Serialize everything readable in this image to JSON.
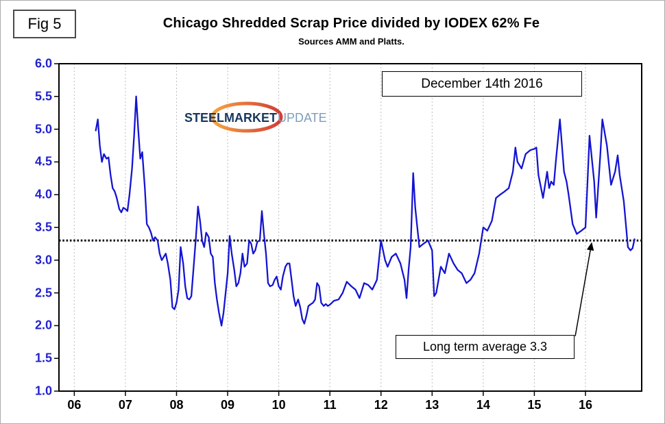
{
  "fig_label": "Fig 5",
  "annotations": {
    "date": "December 14th 2016",
    "average_label": "Long term average 3.3"
  },
  "logo": {
    "steel": "STEEL",
    "market": "MARKET",
    "update": "UPDATE"
  },
  "colors": {
    "line": "#1414d2",
    "grid": "#bcbcbc",
    "y_label": "#2222cc",
    "x_label": "#000000",
    "avg_line": "#000000",
    "border": "#000000",
    "logo_steel": "#17375e",
    "logo_market": "#17375e",
    "logo_update": "#7f9db9",
    "swoosh_start": "#f59d31",
    "swoosh_end": "#cf2b24"
  },
  "chart_data": {
    "type": "line",
    "title": "Chicago Shredded Scrap Price divided by IODEX 62% Fe",
    "subtitle": "Sources AMM and Platts.",
    "xlim": [
      2005.7,
      2017.1
    ],
    "ylim": [
      1.0,
      6.0
    ],
    "grid": "vertical-only",
    "legend": "none",
    "y_ticks": [
      6.0,
      5.5,
      5.0,
      4.5,
      4.0,
      3.5,
      3.0,
      2.5,
      2.0,
      1.5,
      1.0
    ],
    "x_ticks": [
      {
        "year": 2006,
        "label": "06"
      },
      {
        "year": 2007,
        "label": "07"
      },
      {
        "year": 2008,
        "label": "08"
      },
      {
        "year": 2009,
        "label": "09"
      },
      {
        "year": 2010,
        "label": "10"
      },
      {
        "year": 2011,
        "label": "11"
      },
      {
        "year": 2012,
        "label": "12"
      },
      {
        "year": 2013,
        "label": "13"
      },
      {
        "year": 2014,
        "label": "14"
      },
      {
        "year": 2015,
        "label": "15"
      },
      {
        "year": 2016,
        "label": "16"
      }
    ],
    "average_line": {
      "value": 3.3,
      "style": "dotted",
      "color": "#000000"
    },
    "annotation_arrow": {
      "from": [
        2015.8,
        1.84
      ],
      "to": [
        2016.12,
        3.26
      ]
    },
    "series": [
      {
        "name": "Chicago Shredded Scrap Price / IODEX 62% Fe",
        "color": "#1414d2",
        "points": [
          [
            2006.42,
            4.98
          ],
          [
            2006.46,
            5.15
          ],
          [
            2006.5,
            4.75
          ],
          [
            2006.54,
            4.5
          ],
          [
            2006.58,
            4.62
          ],
          [
            2006.63,
            4.55
          ],
          [
            2006.67,
            4.57
          ],
          [
            2006.71,
            4.3
          ],
          [
            2006.75,
            4.1
          ],
          [
            2006.79,
            4.05
          ],
          [
            2006.83,
            3.95
          ],
          [
            2006.88,
            3.78
          ],
          [
            2006.92,
            3.73
          ],
          [
            2006.96,
            3.8
          ],
          [
            2007.0,
            3.78
          ],
          [
            2007.04,
            3.75
          ],
          [
            2007.08,
            4.0
          ],
          [
            2007.13,
            4.4
          ],
          [
            2007.17,
            4.9
          ],
          [
            2007.21,
            5.5
          ],
          [
            2007.25,
            5.0
          ],
          [
            2007.29,
            4.55
          ],
          [
            2007.33,
            4.65
          ],
          [
            2007.38,
            4.1
          ],
          [
            2007.42,
            3.55
          ],
          [
            2007.46,
            3.5
          ],
          [
            2007.5,
            3.42
          ],
          [
            2007.54,
            3.3
          ],
          [
            2007.58,
            3.35
          ],
          [
            2007.63,
            3.3
          ],
          [
            2007.67,
            3.1
          ],
          [
            2007.71,
            3.0
          ],
          [
            2007.75,
            3.05
          ],
          [
            2007.79,
            3.1
          ],
          [
            2007.83,
            2.95
          ],
          [
            2007.88,
            2.7
          ],
          [
            2007.92,
            2.28
          ],
          [
            2007.96,
            2.25
          ],
          [
            2008.0,
            2.35
          ],
          [
            2008.04,
            2.55
          ],
          [
            2008.08,
            3.2
          ],
          [
            2008.13,
            2.95
          ],
          [
            2008.17,
            2.6
          ],
          [
            2008.21,
            2.42
          ],
          [
            2008.25,
            2.4
          ],
          [
            2008.29,
            2.45
          ],
          [
            2008.33,
            2.85
          ],
          [
            2008.38,
            3.35
          ],
          [
            2008.42,
            3.82
          ],
          [
            2008.46,
            3.6
          ],
          [
            2008.5,
            3.3
          ],
          [
            2008.54,
            3.2
          ],
          [
            2008.58,
            3.42
          ],
          [
            2008.63,
            3.35
          ],
          [
            2008.67,
            3.1
          ],
          [
            2008.71,
            3.05
          ],
          [
            2008.75,
            2.65
          ],
          [
            2008.79,
            2.4
          ],
          [
            2008.83,
            2.2
          ],
          [
            2008.88,
            2.0
          ],
          [
            2008.92,
            2.2
          ],
          [
            2008.96,
            2.5
          ],
          [
            2009.0,
            2.8
          ],
          [
            2009.04,
            3.37
          ],
          [
            2009.08,
            3.1
          ],
          [
            2009.13,
            2.85
          ],
          [
            2009.17,
            2.6
          ],
          [
            2009.21,
            2.65
          ],
          [
            2009.25,
            2.8
          ],
          [
            2009.29,
            3.1
          ],
          [
            2009.33,
            2.9
          ],
          [
            2009.38,
            2.95
          ],
          [
            2009.42,
            3.3
          ],
          [
            2009.46,
            3.25
          ],
          [
            2009.5,
            3.1
          ],
          [
            2009.54,
            3.15
          ],
          [
            2009.58,
            3.28
          ],
          [
            2009.63,
            3.3
          ],
          [
            2009.67,
            3.75
          ],
          [
            2009.71,
            3.4
          ],
          [
            2009.75,
            3.1
          ],
          [
            2009.79,
            2.65
          ],
          [
            2009.83,
            2.6
          ],
          [
            2009.88,
            2.62
          ],
          [
            2009.92,
            2.7
          ],
          [
            2009.96,
            2.75
          ],
          [
            2010.0,
            2.6
          ],
          [
            2010.04,
            2.55
          ],
          [
            2010.08,
            2.75
          ],
          [
            2010.13,
            2.9
          ],
          [
            2010.17,
            2.95
          ],
          [
            2010.21,
            2.95
          ],
          [
            2010.25,
            2.7
          ],
          [
            2010.29,
            2.45
          ],
          [
            2010.33,
            2.3
          ],
          [
            2010.38,
            2.4
          ],
          [
            2010.42,
            2.28
          ],
          [
            2010.46,
            2.1
          ],
          [
            2010.5,
            2.03
          ],
          [
            2010.54,
            2.15
          ],
          [
            2010.58,
            2.3
          ],
          [
            2010.63,
            2.33
          ],
          [
            2010.67,
            2.35
          ],
          [
            2010.71,
            2.4
          ],
          [
            2010.75,
            2.65
          ],
          [
            2010.79,
            2.6
          ],
          [
            2010.83,
            2.35
          ],
          [
            2010.88,
            2.3
          ],
          [
            2010.92,
            2.33
          ],
          [
            2010.96,
            2.3
          ],
          [
            2011.0,
            2.32
          ],
          [
            2011.08,
            2.38
          ],
          [
            2011.17,
            2.4
          ],
          [
            2011.25,
            2.5
          ],
          [
            2011.33,
            2.67
          ],
          [
            2011.42,
            2.6
          ],
          [
            2011.5,
            2.55
          ],
          [
            2011.58,
            2.42
          ],
          [
            2011.67,
            2.65
          ],
          [
            2011.75,
            2.62
          ],
          [
            2011.83,
            2.55
          ],
          [
            2011.92,
            2.7
          ],
          [
            2012.0,
            3.3
          ],
          [
            2012.08,
            3.0
          ],
          [
            2012.13,
            2.9
          ],
          [
            2012.21,
            3.05
          ],
          [
            2012.29,
            3.1
          ],
          [
            2012.38,
            2.95
          ],
          [
            2012.46,
            2.7
          ],
          [
            2012.5,
            2.42
          ],
          [
            2012.54,
            2.85
          ],
          [
            2012.58,
            3.2
          ],
          [
            2012.63,
            4.33
          ],
          [
            2012.67,
            3.8
          ],
          [
            2012.71,
            3.5
          ],
          [
            2012.75,
            3.2
          ],
          [
            2012.83,
            3.25
          ],
          [
            2012.92,
            3.3
          ],
          [
            2013.0,
            3.15
          ],
          [
            2013.04,
            2.45
          ],
          [
            2013.08,
            2.5
          ],
          [
            2013.17,
            2.9
          ],
          [
            2013.25,
            2.8
          ],
          [
            2013.33,
            3.1
          ],
          [
            2013.42,
            2.95
          ],
          [
            2013.5,
            2.85
          ],
          [
            2013.58,
            2.8
          ],
          [
            2013.67,
            2.65
          ],
          [
            2013.75,
            2.7
          ],
          [
            2013.83,
            2.8
          ],
          [
            2013.92,
            3.1
          ],
          [
            2014.0,
            3.5
          ],
          [
            2014.08,
            3.45
          ],
          [
            2014.17,
            3.6
          ],
          [
            2014.25,
            3.95
          ],
          [
            2014.33,
            4.0
          ],
          [
            2014.42,
            4.05
          ],
          [
            2014.5,
            4.1
          ],
          [
            2014.58,
            4.35
          ],
          [
            2014.63,
            4.72
          ],
          [
            2014.67,
            4.5
          ],
          [
            2014.75,
            4.4
          ],
          [
            2014.83,
            4.62
          ],
          [
            2014.92,
            4.68
          ],
          [
            2015.0,
            4.7
          ],
          [
            2015.04,
            4.72
          ],
          [
            2015.08,
            4.3
          ],
          [
            2015.17,
            3.95
          ],
          [
            2015.25,
            4.35
          ],
          [
            2015.29,
            4.1
          ],
          [
            2015.33,
            4.2
          ],
          [
            2015.38,
            4.15
          ],
          [
            2015.42,
            4.5
          ],
          [
            2015.5,
            5.15
          ],
          [
            2015.58,
            4.35
          ],
          [
            2015.63,
            4.2
          ],
          [
            2015.67,
            4.0
          ],
          [
            2015.75,
            3.55
          ],
          [
            2015.83,
            3.4
          ],
          [
            2015.92,
            3.45
          ],
          [
            2016.0,
            3.5
          ],
          [
            2016.04,
            4.2
          ],
          [
            2016.08,
            4.9
          ],
          [
            2016.17,
            4.2
          ],
          [
            2016.21,
            3.65
          ],
          [
            2016.29,
            4.6
          ],
          [
            2016.33,
            5.15
          ],
          [
            2016.42,
            4.75
          ],
          [
            2016.5,
            4.15
          ],
          [
            2016.58,
            4.35
          ],
          [
            2016.63,
            4.6
          ],
          [
            2016.67,
            4.3
          ],
          [
            2016.75,
            3.9
          ],
          [
            2016.83,
            3.2
          ],
          [
            2016.88,
            3.15
          ],
          [
            2016.92,
            3.18
          ],
          [
            2016.96,
            3.32
          ]
        ]
      }
    ]
  }
}
